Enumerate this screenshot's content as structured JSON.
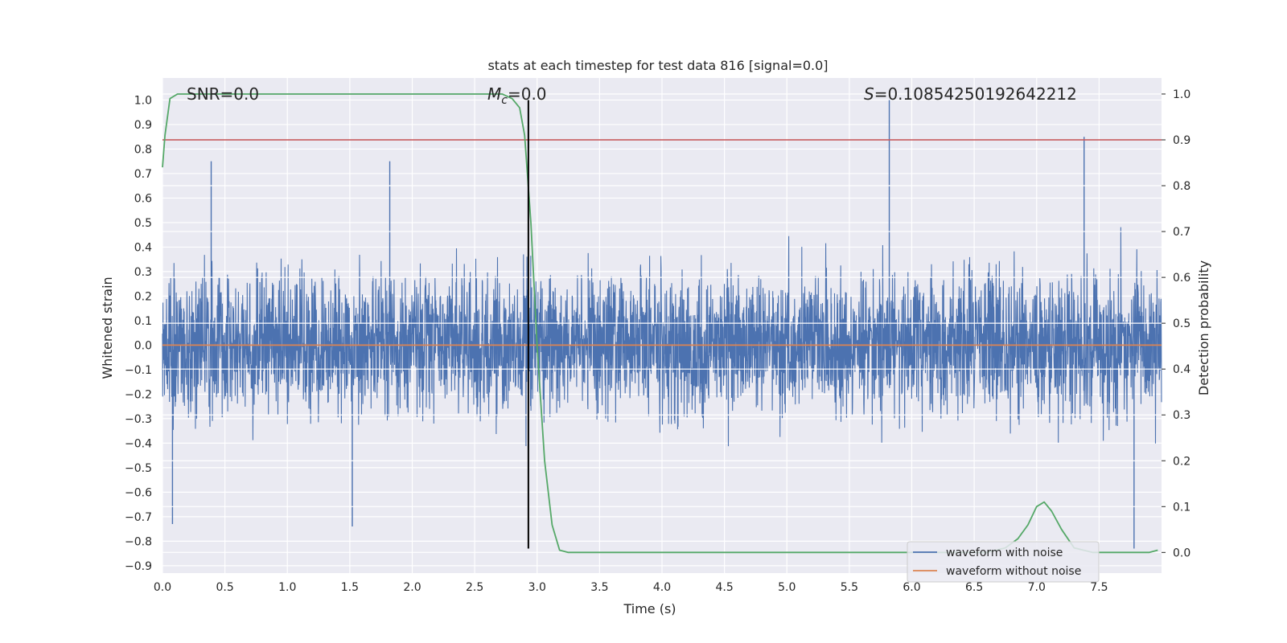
{
  "chart_data": {
    "type": "line",
    "title": "stats at each timestep for test data 816 [signal=0.0]",
    "xlabel": "Time (s)",
    "ylabel": "Whitened strain",
    "y2label": "Detection probability",
    "xlim": [
      0.0,
      8.0
    ],
    "ylim": [
      -0.93,
      1.09
    ],
    "y2lim": [
      -0.045,
      1.035
    ],
    "x_ticks": [
      "0.0",
      "0.5",
      "1.0",
      "1.5",
      "2.0",
      "2.5",
      "3.0",
      "3.5",
      "4.0",
      "4.5",
      "5.0",
      "5.5",
      "6.0",
      "6.5",
      "7.0",
      "7.5"
    ],
    "x_tick_values": [
      0.0,
      0.5,
      1.0,
      1.5,
      2.0,
      2.5,
      3.0,
      3.5,
      4.0,
      4.5,
      5.0,
      5.5,
      6.0,
      6.5,
      7.0,
      7.5
    ],
    "y_ticks": [
      "1.0",
      "0.9",
      "0.8",
      "0.7",
      "0.6",
      "0.5",
      "0.4",
      "0.3",
      "0.2",
      "0.1",
      "0.0",
      "−0.1",
      "−0.2",
      "−0.3",
      "−0.4",
      "−0.5",
      "−0.6",
      "−0.7",
      "−0.8",
      "−0.9"
    ],
    "y_tick_values": [
      1.0,
      0.9,
      0.8,
      0.7,
      0.6,
      0.5,
      0.4,
      0.3,
      0.2,
      0.1,
      0.0,
      -0.1,
      -0.2,
      -0.3,
      -0.4,
      -0.5,
      -0.6,
      -0.7,
      -0.8,
      -0.9
    ],
    "y2_ticks": [
      "1.0",
      "0.9",
      "0.8",
      "0.7",
      "0.6",
      "0.5",
      "0.4",
      "0.3",
      "0.2",
      "0.1",
      "0.0"
    ],
    "y2_tick_values": [
      1.0,
      0.9,
      0.8,
      0.7,
      0.6,
      0.5,
      0.4,
      0.3,
      0.2,
      0.1,
      0.0
    ],
    "grid": true,
    "legend_position": "lower-right",
    "annotations": {
      "snr": "SNR=0.0",
      "mc_symbol": "M",
      "mc_sub": "c",
      "mc_value": "=0.0",
      "s_symbol": "S",
      "s_value": "=0.10854250192642212"
    },
    "threshold": {
      "axis": "y2",
      "value": 0.9,
      "color": "#c44e52"
    },
    "marker_line": {
      "x": 2.93,
      "y_from": -0.83,
      "y_to": 1.0,
      "color": "#000000"
    },
    "series": [
      {
        "name": "waveform with noise",
        "color": "#4c72b0",
        "axis": "y",
        "style": "dense-noise",
        "x_range": [
          0.0,
          8.0
        ],
        "envelope_max": 1.0,
        "envelope_min": -0.83,
        "samples": 4000,
        "spikes": [
          {
            "x": 5.82,
            "y": 1.0
          },
          {
            "x": 7.38,
            "y": 0.85
          },
          {
            "x": 0.39,
            "y": 0.75
          },
          {
            "x": 1.82,
            "y": 0.75
          },
          {
            "x": 7.78,
            "y": -0.83
          },
          {
            "x": 0.08,
            "y": -0.73
          },
          {
            "x": 1.52,
            "y": -0.74
          }
        ]
      },
      {
        "name": "waveform without noise",
        "color": "#dd8452",
        "axis": "y",
        "x": [
          0.0,
          8.0
        ],
        "y": [
          0.0,
          0.0
        ]
      },
      {
        "color": "#55a868",
        "axis": "y2",
        "x": [
          0.0,
          0.02,
          0.06,
          0.12,
          0.2,
          1.0,
          2.0,
          2.6,
          2.72,
          2.8,
          2.86,
          2.9,
          2.95,
          3.0,
          3.06,
          3.12,
          3.18,
          3.25,
          3.4,
          4.0,
          5.0,
          6.0,
          6.6,
          6.75,
          6.85,
          6.93,
          7.0,
          7.06,
          7.12,
          7.2,
          7.3,
          7.45,
          7.6,
          7.75,
          7.9,
          7.97
        ],
        "y": [
          0.84,
          0.91,
          0.99,
          1.0,
          1.0,
          1.0,
          1.0,
          1.0,
          1.0,
          0.99,
          0.97,
          0.91,
          0.72,
          0.45,
          0.2,
          0.06,
          0.005,
          0.0,
          0.0,
          0.0,
          0.0,
          0.0,
          0.0,
          0.01,
          0.03,
          0.06,
          0.1,
          0.11,
          0.09,
          0.05,
          0.01,
          0.0,
          0.0,
          0.0,
          0.0,
          0.005
        ]
      }
    ]
  }
}
